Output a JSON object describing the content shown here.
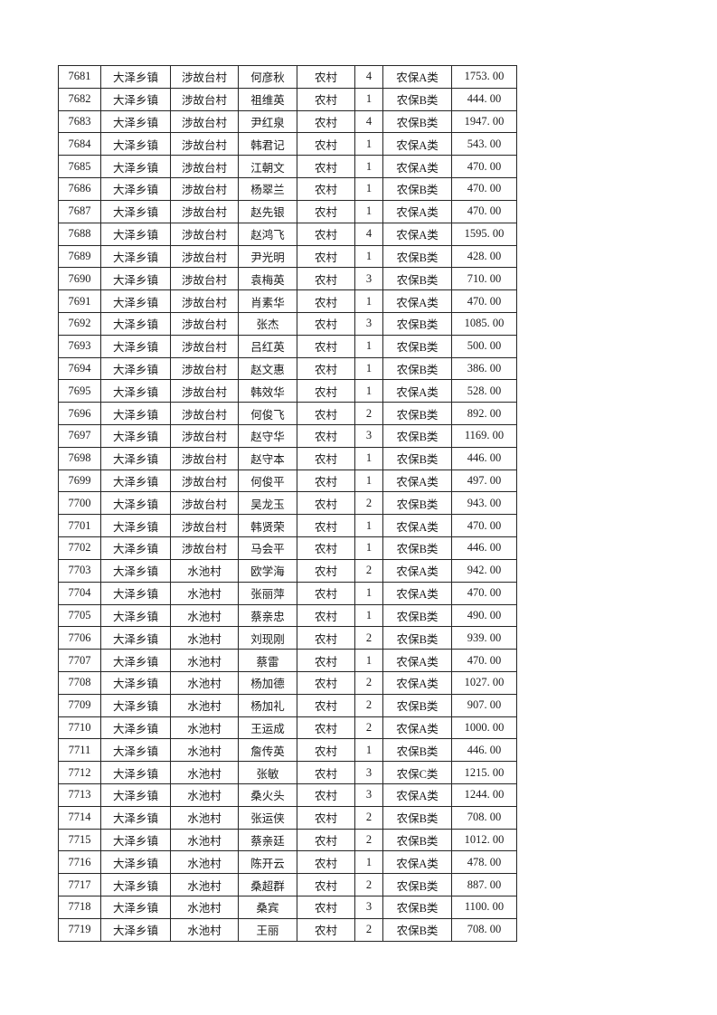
{
  "document": {
    "background_color": "#ffffff",
    "table": {
      "border_color": "#262626",
      "text_color": "#1b1b1b",
      "columns": [
        "col-serial-number",
        "col-town",
        "col-village",
        "col-person-name",
        "col-residence-type",
        "col-household-count",
        "col-insurance-category",
        "col-amount"
      ],
      "rows": [
        [
          "7681",
          "大泽乡镇",
          "涉故台村",
          "何彦秋",
          "农村",
          "4",
          "农保A类",
          "1753. 00"
        ],
        [
          "7682",
          "大泽乡镇",
          "涉故台村",
          "祖维英",
          "农村",
          "1",
          "农保B类",
          "444. 00"
        ],
        [
          "7683",
          "大泽乡镇",
          "涉故台村",
          "尹红泉",
          "农村",
          "4",
          "农保B类",
          "1947. 00"
        ],
        [
          "7684",
          "大泽乡镇",
          "涉故台村",
          "韩君记",
          "农村",
          "1",
          "农保A类",
          "543. 00"
        ],
        [
          "7685",
          "大泽乡镇",
          "涉故台村",
          "江朝文",
          "农村",
          "1",
          "农保A类",
          "470. 00"
        ],
        [
          "7686",
          "大泽乡镇",
          "涉故台村",
          "杨翠兰",
          "农村",
          "1",
          "农保B类",
          "470. 00"
        ],
        [
          "7687",
          "大泽乡镇",
          "涉故台村",
          "赵先银",
          "农村",
          "1",
          "农保A类",
          "470. 00"
        ],
        [
          "7688",
          "大泽乡镇",
          "涉故台村",
          "赵鸿飞",
          "农村",
          "4",
          "农保A类",
          "1595. 00"
        ],
        [
          "7689",
          "大泽乡镇",
          "涉故台村",
          "尹光明",
          "农村",
          "1",
          "农保B类",
          "428. 00"
        ],
        [
          "7690",
          "大泽乡镇",
          "涉故台村",
          "袁梅英",
          "农村",
          "3",
          "农保B类",
          "710. 00"
        ],
        [
          "7691",
          "大泽乡镇",
          "涉故台村",
          "肖素华",
          "农村",
          "1",
          "农保A类",
          "470. 00"
        ],
        [
          "7692",
          "大泽乡镇",
          "涉故台村",
          "张杰",
          "农村",
          "3",
          "农保B类",
          "1085. 00"
        ],
        [
          "7693",
          "大泽乡镇",
          "涉故台村",
          "吕红英",
          "农村",
          "1",
          "农保B类",
          "500. 00"
        ],
        [
          "7694",
          "大泽乡镇",
          "涉故台村",
          "赵文惠",
          "农村",
          "1",
          "农保B类",
          "386. 00"
        ],
        [
          "7695",
          "大泽乡镇",
          "涉故台村",
          "韩效华",
          "农村",
          "1",
          "农保A类",
          "528. 00"
        ],
        [
          "7696",
          "大泽乡镇",
          "涉故台村",
          "何俊飞",
          "农村",
          "2",
          "农保B类",
          "892. 00"
        ],
        [
          "7697",
          "大泽乡镇",
          "涉故台村",
          "赵守华",
          "农村",
          "3",
          "农保B类",
          "1169. 00"
        ],
        [
          "7698",
          "大泽乡镇",
          "涉故台村",
          "赵守本",
          "农村",
          "1",
          "农保B类",
          "446. 00"
        ],
        [
          "7699",
          "大泽乡镇",
          "涉故台村",
          "何俊平",
          "农村",
          "1",
          "农保A类",
          "497. 00"
        ],
        [
          "7700",
          "大泽乡镇",
          "涉故台村",
          "吴龙玉",
          "农村",
          "2",
          "农保B类",
          "943. 00"
        ],
        [
          "7701",
          "大泽乡镇",
          "涉故台村",
          "韩贤荣",
          "农村",
          "1",
          "农保A类",
          "470. 00"
        ],
        [
          "7702",
          "大泽乡镇",
          "涉故台村",
          "马会平",
          "农村",
          "1",
          "农保B类",
          "446. 00"
        ],
        [
          "7703",
          "大泽乡镇",
          "水池村",
          "欧学海",
          "农村",
          "2",
          "农保A类",
          "942. 00"
        ],
        [
          "7704",
          "大泽乡镇",
          "水池村",
          "张丽萍",
          "农村",
          "1",
          "农保A类",
          "470. 00"
        ],
        [
          "7705",
          "大泽乡镇",
          "水池村",
          "蔡亲忠",
          "农村",
          "1",
          "农保B类",
          "490. 00"
        ],
        [
          "7706",
          "大泽乡镇",
          "水池村",
          "刘现刚",
          "农村",
          "2",
          "农保B类",
          "939. 00"
        ],
        [
          "7707",
          "大泽乡镇",
          "水池村",
          "蔡雷",
          "农村",
          "1",
          "农保A类",
          "470. 00"
        ],
        [
          "7708",
          "大泽乡镇",
          "水池村",
          "杨加德",
          "农村",
          "2",
          "农保A类",
          "1027. 00"
        ],
        [
          "7709",
          "大泽乡镇",
          "水池村",
          "杨加礼",
          "农村",
          "2",
          "农保B类",
          "907. 00"
        ],
        [
          "7710",
          "大泽乡镇",
          "水池村",
          "王运成",
          "农村",
          "2",
          "农保A类",
          "1000. 00"
        ],
        [
          "7711",
          "大泽乡镇",
          "水池村",
          "詹传英",
          "农村",
          "1",
          "农保B类",
          "446. 00"
        ],
        [
          "7712",
          "大泽乡镇",
          "水池村",
          "张敏",
          "农村",
          "3",
          "农保C类",
          "1215. 00"
        ],
        [
          "7713",
          "大泽乡镇",
          "水池村",
          "桑火头",
          "农村",
          "3",
          "农保A类",
          "1244. 00"
        ],
        [
          "7714",
          "大泽乡镇",
          "水池村",
          "张运侠",
          "农村",
          "2",
          "农保B类",
          "708. 00"
        ],
        [
          "7715",
          "大泽乡镇",
          "水池村",
          "蔡亲廷",
          "农村",
          "2",
          "农保B类",
          "1012. 00"
        ],
        [
          "7716",
          "大泽乡镇",
          "水池村",
          "陈开云",
          "农村",
          "1",
          "农保A类",
          "478. 00"
        ],
        [
          "7717",
          "大泽乡镇",
          "水池村",
          "桑超群",
          "农村",
          "2",
          "农保B类",
          "887. 00"
        ],
        [
          "7718",
          "大泽乡镇",
          "水池村",
          "桑宾",
          "农村",
          "3",
          "农保B类",
          "1100. 00"
        ],
        [
          "7719",
          "大泽乡镇",
          "水池村",
          "王丽",
          "农村",
          "2",
          "农保B类",
          "708. 00"
        ]
      ]
    }
  }
}
